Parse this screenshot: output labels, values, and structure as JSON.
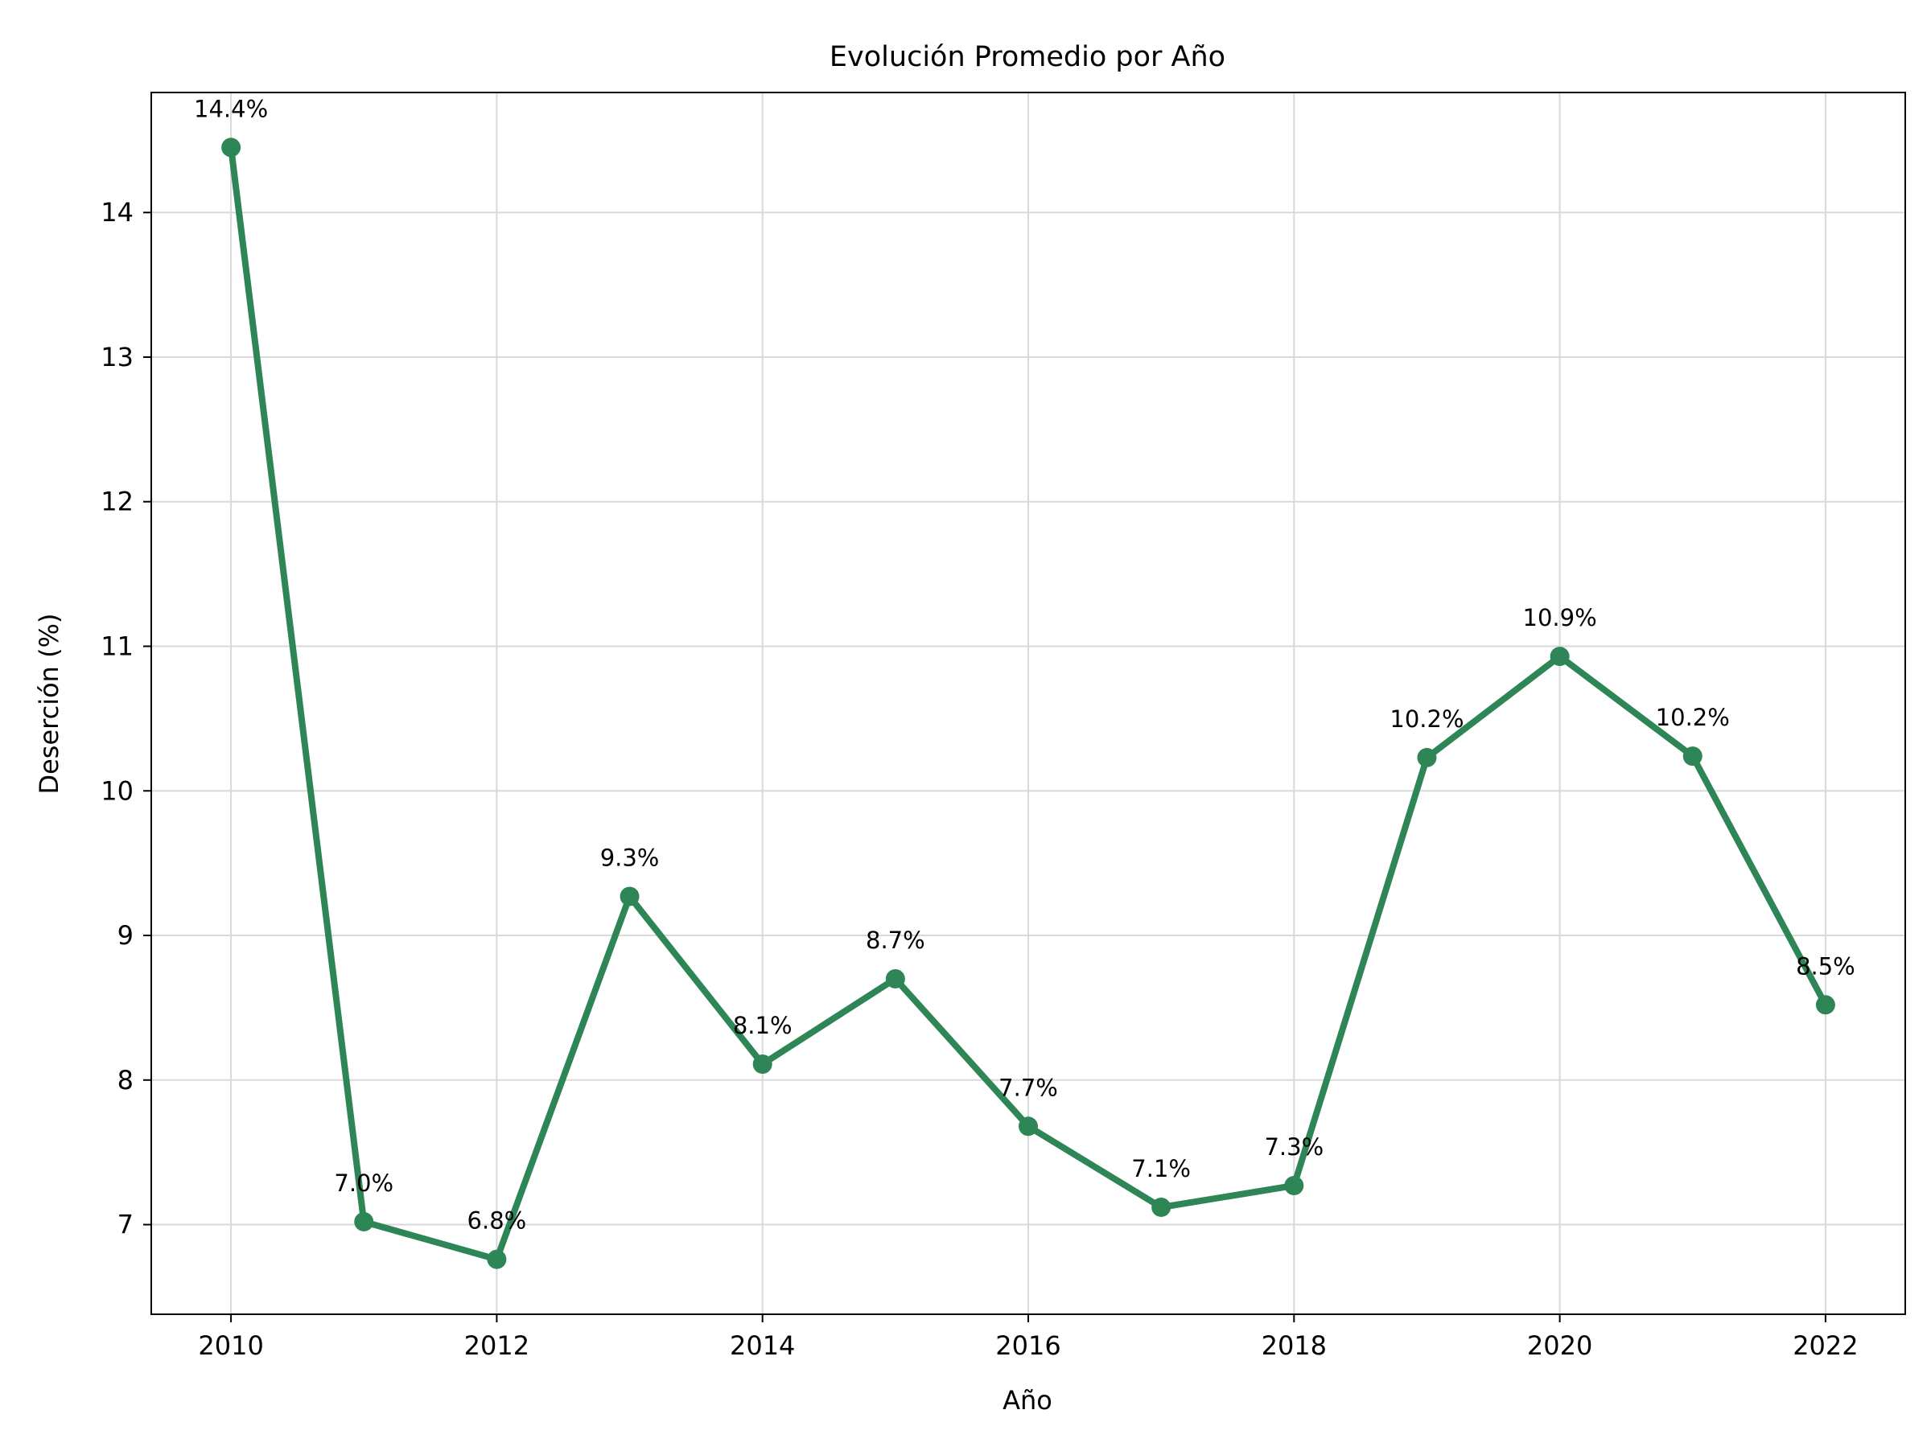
{
  "chart_data": {
    "type": "line",
    "title": "Evolución Promedio por Año",
    "xlabel": "Año",
    "ylabel": "Deserción (%)",
    "x": [
      2010,
      2011,
      2012,
      2013,
      2014,
      2015,
      2016,
      2017,
      2018,
      2019,
      2020,
      2021,
      2022
    ],
    "series": [
      {
        "name": "",
        "values": [
          14.45,
          7.02,
          6.76,
          9.27,
          8.11,
          8.7,
          7.68,
          7.12,
          7.27,
          10.23,
          10.93,
          10.24,
          8.52
        ],
        "labels": [
          "14.4%",
          "7.0%",
          "6.8%",
          "9.3%",
          "8.1%",
          "8.7%",
          "7.7%",
          "7.1%",
          "7.3%",
          "10.2%",
          "10.9%",
          "10.2%",
          "8.5%"
        ],
        "color": "#2e8555"
      }
    ],
    "xticks": [
      "2010",
      "2012",
      "2014",
      "2016",
      "2018",
      "2020",
      "2022"
    ],
    "yticks": [
      "7",
      "8",
      "9",
      "10",
      "11",
      "12",
      "13",
      "14"
    ],
    "xlim": [
      2009.4,
      2022.6
    ],
    "ylim": [
      6.38,
      14.83
    ],
    "grid": true,
    "legend": "none"
  }
}
